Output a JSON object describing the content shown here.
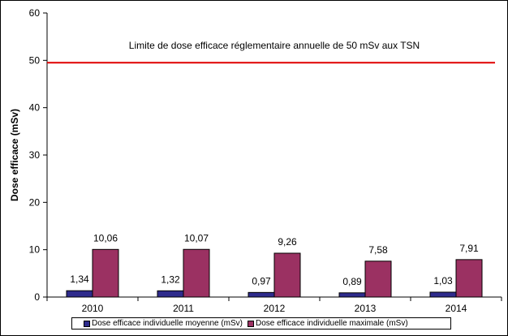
{
  "chart_data": {
    "type": "bar",
    "categories": [
      "2010",
      "2011",
      "2012",
      "2013",
      "2014"
    ],
    "series": [
      {
        "name": "Dose efficace individuelle moyenne (mSv)",
        "values": [
          1.34,
          1.32,
          0.97,
          0.89,
          1.03
        ],
        "labels": [
          "1,34",
          "1,32",
          "0,97",
          "0,89",
          "1,03"
        ],
        "color": "#2e2b8c"
      },
      {
        "name": "Dose efficace individuelle maximale (mSv)",
        "values": [
          10.06,
          10.07,
          9.26,
          7.58,
          7.91
        ],
        "labels": [
          "10,06",
          "10,07",
          "9,26",
          "7,58",
          "7,91"
        ],
        "color": "#9b3162"
      }
    ],
    "ylabel": "Dose efficace (mSv)",
    "ylim": [
      0,
      60
    ],
    "yticks": [
      0,
      10,
      20,
      30,
      40,
      50,
      60
    ],
    "reference_line": {
      "value": 49.5,
      "color": "#e00000",
      "label": "Limite de dose efficace réglementaire annuelle de 50 mSv aux TSN"
    },
    "grid": false,
    "legend_position": "bottom"
  }
}
